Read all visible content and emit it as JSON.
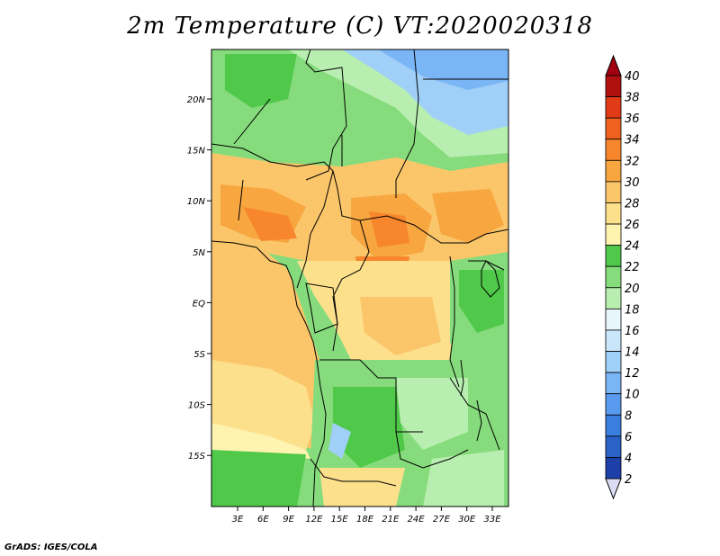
{
  "title": "2m Temperature (C) VT:2020020318",
  "footer": "GrADS: IGES/COLA",
  "map": {
    "lon_labels": [
      "3E",
      "6E",
      "9E",
      "12E",
      "15E",
      "18E",
      "21E",
      "24E",
      "27E",
      "30E",
      "33E"
    ],
    "lat_labels": [
      "20N",
      "15N",
      "10N",
      "5N",
      "EQ",
      "5S",
      "10S",
      "15S"
    ]
  },
  "colorbar": {
    "levels": [
      2,
      4,
      6,
      8,
      10,
      12,
      14,
      16,
      18,
      20,
      22,
      24,
      26,
      28,
      30,
      32,
      34,
      36,
      38,
      40
    ],
    "colors": [
      "#1b1b7a",
      "#1c3fa8",
      "#2a62c8",
      "#3a7fe0",
      "#5a9aee",
      "#7ab6f5",
      "#a0cff8",
      "#c9e6fb",
      "#e7f6fb",
      "#b8eeb0",
      "#86dc7c",
      "#50c84a",
      "#fff3b0",
      "#fde08c",
      "#fbc66a",
      "#f8a640",
      "#f7862c",
      "#f0601e",
      "#e03a16",
      "#b01010"
    ],
    "under_color": "#dcdcf4",
    "over_color": "#a00010"
  }
}
